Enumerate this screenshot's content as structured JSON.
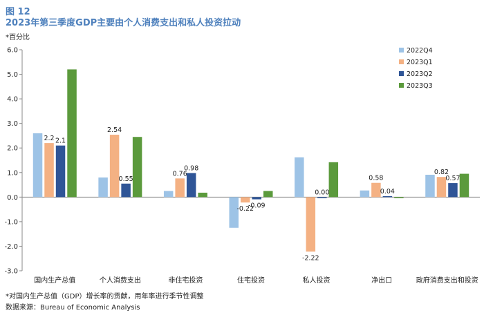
{
  "figure_label": "图 12",
  "title": "2023年第三季度GDP主要由个人消费支出和私人投资拉动",
  "unit_note": "*百分比",
  "footnote": "*对国内生产总值（GDP）增长率的贡献，用年率进行季节性调整",
  "source": "数据来源：Bureau of Economic Analysis",
  "chart_data": {
    "type": "bar",
    "categories": [
      "国内生产总值",
      "个人消费支出",
      "非住宅投资",
      "住宅投资",
      "私人投资",
      "净出口",
      "政府消费支出和投资"
    ],
    "series": [
      {
        "name": "2022Q4",
        "color": "#9dc3e6",
        "values": [
          2.6,
          0.8,
          0.25,
          -1.25,
          1.62,
          0.27,
          0.91
        ],
        "labels": [
          "",
          "",
          "",
          "",
          "",
          "",
          ""
        ]
      },
      {
        "name": "2023Q1",
        "color": "#f4b183",
        "values": [
          2.2,
          2.54,
          0.76,
          -0.22,
          -2.22,
          0.58,
          0.82
        ],
        "labels": [
          "2.2",
          "2.54",
          "0.76",
          "-0.22",
          "-2.22",
          "0.58",
          "0.82"
        ]
      },
      {
        "name": "2023Q2",
        "color": "#2f5597",
        "values": [
          2.1,
          0.55,
          0.98,
          -0.09,
          0.0,
          0.04,
          0.57
        ],
        "labels": [
          "2.1",
          "0.55",
          "0.98",
          "-0.09",
          "0.00",
          "0.04",
          "0.57"
        ]
      },
      {
        "name": "2023Q3",
        "color": "#5b9a3c",
        "values": [
          5.2,
          2.45,
          0.18,
          0.25,
          1.42,
          -0.03,
          0.95
        ],
        "labels": [
          "",
          "",
          "",
          "",
          "",
          "",
          ""
        ]
      }
    ],
    "ylim": [
      -3.0,
      6.0
    ],
    "yticks": [
      "6.0",
      "5.0",
      "4.0",
      "3.0",
      "2.0",
      "1.0",
      "0.0",
      "-1.0",
      "-2.0",
      "-3.0"
    ],
    "legend_position": "top-right",
    "grid": false
  }
}
